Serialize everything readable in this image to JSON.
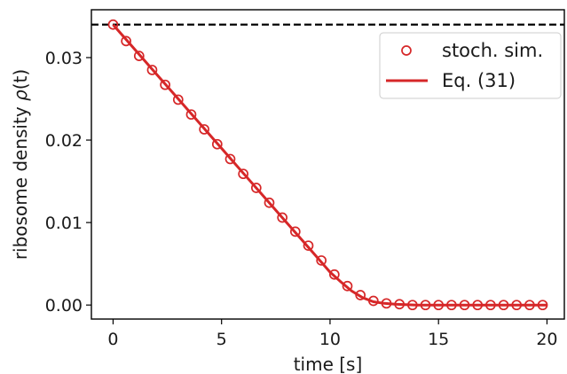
{
  "chart_data": {
    "type": "scatter",
    "xlabel": "time [s]",
    "ylabel_main": "ribosome density ",
    "ylabel_symbol": "ρ",
    "ylabel_arg": "(t)",
    "xlim": [
      -1,
      20.8
    ],
    "ylim": [
      -0.0017,
      0.0358
    ],
    "xticks": [
      0,
      5,
      10,
      15,
      20
    ],
    "xtick_labels": [
      "0",
      "5",
      "10",
      "15",
      "20"
    ],
    "yticks": [
      0.0,
      0.01,
      0.02,
      0.03
    ],
    "ytick_labels": [
      "0.00",
      "0.01",
      "0.02",
      "0.03"
    ],
    "grid": false,
    "legend_position": "top-right",
    "reference_line": {
      "y": 0.034,
      "style": "dashed",
      "color": "#000000"
    },
    "series": [
      {
        "name": "stoch. sim.",
        "kind": "markers",
        "marker": "open-circle",
        "color": "#d62728",
        "x": [
          0,
          0.6,
          1.2,
          1.8,
          2.4,
          3.0,
          3.6,
          4.2,
          4.8,
          5.4,
          6.0,
          6.6,
          7.2,
          7.8,
          8.4,
          9.0,
          9.6,
          10.2,
          10.8,
          11.4,
          12.0,
          12.6,
          13.2,
          13.8,
          14.4,
          15.0,
          15.6,
          16.2,
          16.8,
          17.4,
          18.0,
          18.6,
          19.2,
          19.8
        ],
        "y": [
          0.034,
          0.032,
          0.0302,
          0.0285,
          0.0267,
          0.0249,
          0.0231,
          0.0213,
          0.0195,
          0.0177,
          0.0159,
          0.0142,
          0.0124,
          0.0106,
          0.0089,
          0.0072,
          0.0054,
          0.0037,
          0.0023,
          0.0012,
          0.0005,
          0.0002,
          0.0001,
          0.0,
          0.0,
          0.0,
          0.0,
          0.0,
          0.0,
          0.0,
          0.0,
          0.0,
          0.0,
          0.0
        ]
      },
      {
        "name": "Eq. (31)",
        "kind": "line",
        "color": "#d62728",
        "x": [
          0,
          1,
          2,
          3,
          4,
          5,
          6,
          7,
          8,
          9,
          10,
          10.5,
          11,
          11.5,
          12,
          12.5,
          13,
          14,
          20
        ],
        "y": [
          0.034,
          0.031,
          0.028,
          0.025,
          0.022,
          0.019,
          0.016,
          0.013,
          0.01,
          0.007,
          0.004,
          0.0028,
          0.0017,
          0.0009,
          0.0004,
          0.0002,
          0.0001,
          0.0,
          0.0
        ]
      }
    ]
  }
}
